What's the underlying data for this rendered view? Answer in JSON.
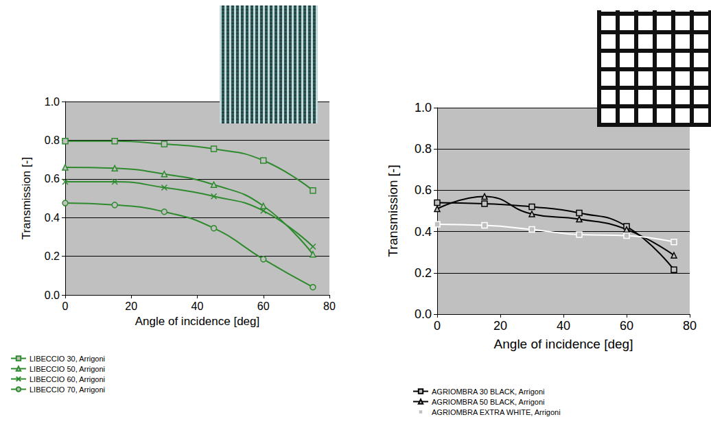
{
  "chart_data": [
    {
      "type": "line",
      "xlabel": "Angle of incidence [deg]",
      "ylabel": "Transmission [-]",
      "x": [
        0,
        15,
        30,
        45,
        60,
        75
      ],
      "xlim": [
        0,
        80
      ],
      "xticks": [
        0,
        20,
        40,
        60,
        80
      ],
      "ylim": [
        0,
        1
      ],
      "yticks": [
        {
          "value": 0,
          "label": "0.0"
        },
        0.2,
        0.4,
        0.6,
        0.8,
        {
          "value": 1,
          "label": "1.0"
        }
      ],
      "grid": true,
      "legend": "bottom",
      "line_style": "smooth",
      "series": [
        {
          "name": "LIBECCIO 30, Arrigoni",
          "color": "#2d8a2d",
          "marker": "square",
          "values": [
            0.795,
            0.795,
            0.78,
            0.755,
            0.695,
            0.54
          ]
        },
        {
          "name": "LIBECCIO 50, Arrigoni",
          "color": "#2d8a2d",
          "marker": "triangle",
          "values": [
            0.66,
            0.655,
            0.625,
            0.57,
            0.46,
            0.21
          ]
        },
        {
          "name": "LIBECCIO 60, Arrigoni",
          "color": "#2d8a2d",
          "marker": "x",
          "values": [
            0.585,
            0.585,
            0.555,
            0.51,
            0.435,
            0.25
          ]
        },
        {
          "name": "LIBECCIO 70, Arrigoni",
          "color": "#2d8a2d",
          "marker": "circle",
          "values": [
            0.475,
            0.465,
            0.43,
            0.345,
            0.185,
            0.04
          ]
        }
      ]
    },
    {
      "type": "line",
      "xlabel": "Angle of incidence [deg]",
      "ylabel": "Transmission [-]",
      "x": [
        0,
        15,
        30,
        45,
        60,
        75
      ],
      "xlim": [
        0,
        80
      ],
      "xticks": [
        0,
        20,
        40,
        60,
        80
      ],
      "ylim": [
        0,
        1
      ],
      "yticks": [
        {
          "value": 0,
          "label": "0.0"
        },
        0.2,
        0.4,
        0.6,
        0.8,
        {
          "value": 1,
          "label": "1.0"
        }
      ],
      "grid": true,
      "legend": "bottom",
      "line_style": "smooth",
      "series": [
        {
          "name": "AGRIOMBRA 30 BLACK, Arrigoni",
          "color": "#000000",
          "marker": "square",
          "values": [
            0.54,
            0.535,
            0.52,
            0.49,
            0.425,
            0.215
          ]
        },
        {
          "name": "AGRIOMBRA 50 BLACK, Arrigoni",
          "color": "#000000",
          "marker": "triangle",
          "values": [
            0.51,
            0.57,
            0.485,
            0.46,
            0.41,
            0.285
          ]
        },
        {
          "name": "AGRIOMBRA EXTRA WHITE, Arrigoni",
          "color": "#ffffff",
          "marker": "square",
          "values": [
            0.435,
            0.43,
            0.41,
            0.385,
            0.38,
            0.35
          ]
        }
      ]
    }
  ]
}
